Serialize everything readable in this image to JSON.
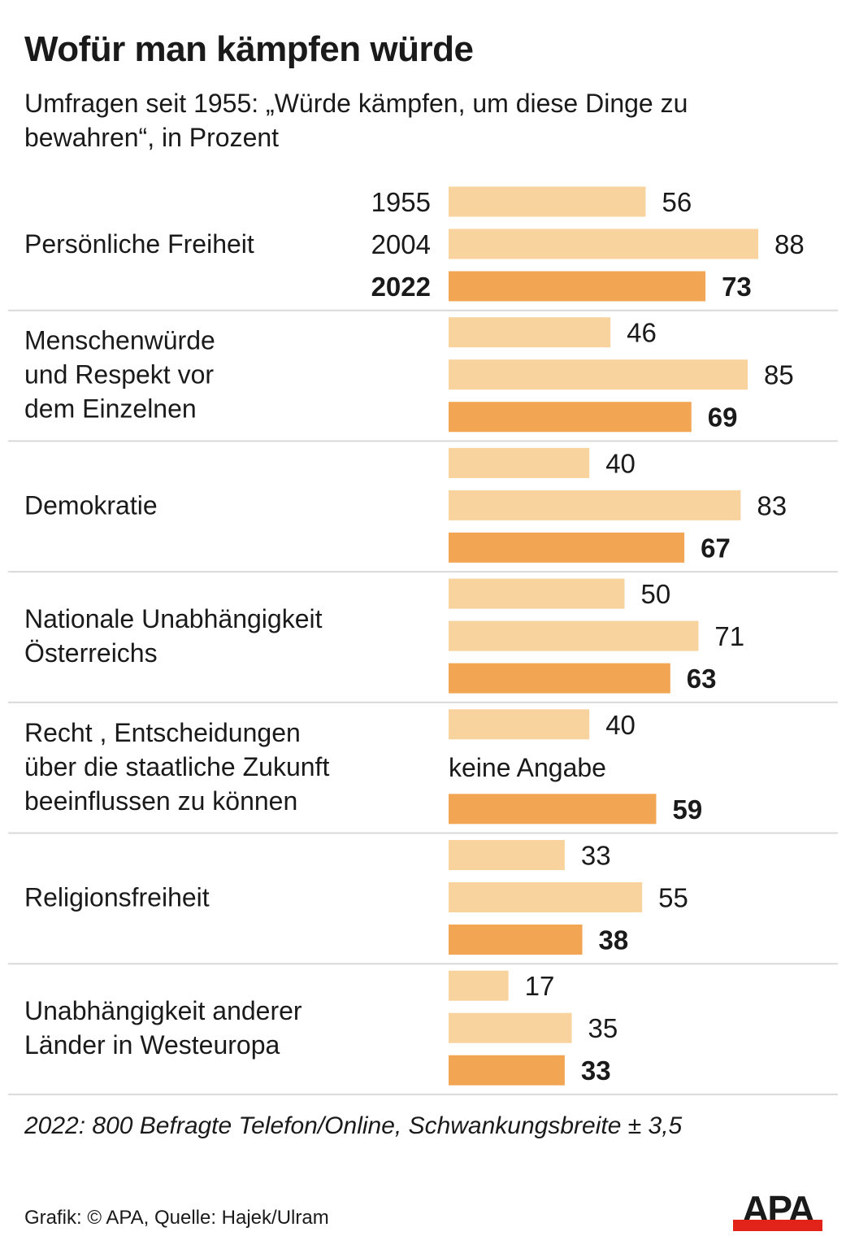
{
  "header": {
    "title": "Wofür man kämpfen würde",
    "subtitle": "Umfragen seit 1955: „Würde kämpfen, um diese Dinge zu bewahren“, in Prozent"
  },
  "footer": {
    "note": "2022: 800 Befragte Telefon/Online, Schwankungsbreite ± 3,5",
    "credit": "Grafik: © APA, Quelle: Hajek/Ulram",
    "logo_text": "APA"
  },
  "colors": {
    "light_bar": "#f9d39d",
    "dark_bar": "#f2a654",
    "separator": "#d9d9d9",
    "logo_red": "#e2231a"
  },
  "chart_data": {
    "type": "bar",
    "orientation": "horizontal",
    "title": "Wofür man kämpfen würde",
    "subtitle": "Umfragen seit 1955: „Würde kämpfen, um diese Dinge zu bewahren“, in Prozent",
    "unit": "Prozent",
    "xlim": [
      0,
      100
    ],
    "grid": false,
    "series_names": [
      "1955",
      "2004",
      "2022"
    ],
    "year_labels_shown_in_group": 0,
    "missing_label": "keine Angabe",
    "categories": [
      {
        "label": [
          "Persönliche Freiheit"
        ],
        "values": [
          56,
          88,
          73
        ]
      },
      {
        "label": [
          "Menschenwürde",
          "und Respekt vor",
          "dem Einzelnen"
        ],
        "values": [
          46,
          85,
          69
        ]
      },
      {
        "label": [
          "Demokratie"
        ],
        "values": [
          40,
          83,
          67
        ]
      },
      {
        "label": [
          "Nationale Unabhängigkeit",
          "Österreichs"
        ],
        "values": [
          50,
          71,
          63
        ]
      },
      {
        "label": [
          "Recht , Entscheidungen",
          "über die staatliche Zukunft",
          "beeinflussen zu können"
        ],
        "values": [
          40,
          null,
          59
        ]
      },
      {
        "label": [
          "Religionsfreiheit"
        ],
        "values": [
          33,
          55,
          38
        ]
      },
      {
        "label": [
          "Unabhängigkeit anderer",
          "Länder in Westeuropa"
        ],
        "values": [
          17,
          35,
          33
        ]
      }
    ]
  }
}
